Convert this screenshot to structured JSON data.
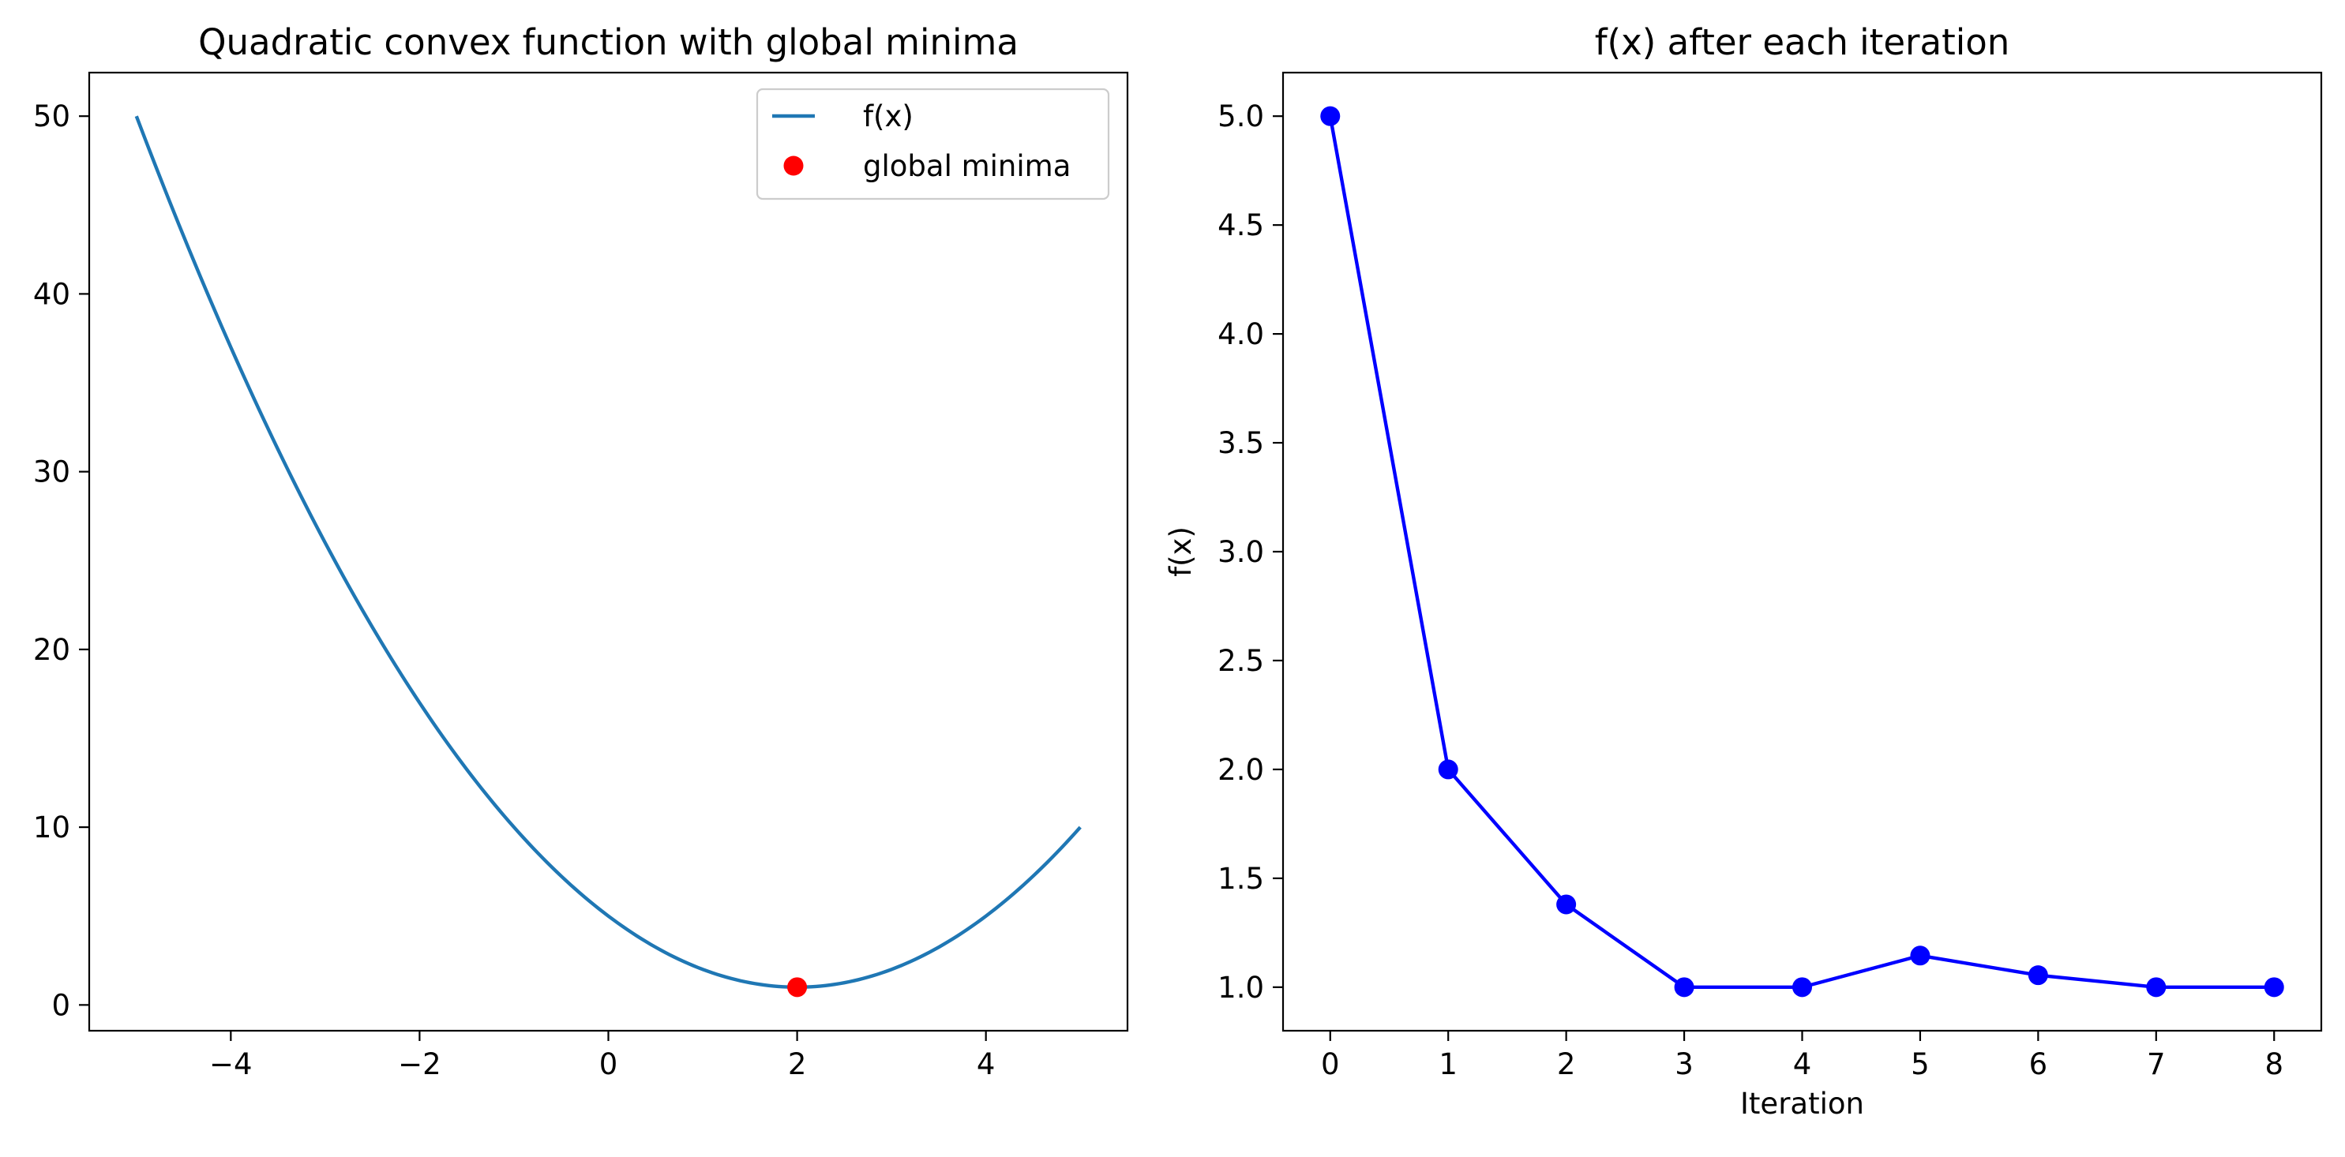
{
  "chart_data": [
    {
      "type": "line",
      "title": "Quadratic convex function with global minima",
      "xlabel": "",
      "ylabel": "",
      "xlim": [
        -5.5,
        5.5
      ],
      "ylim": [
        -1.45,
        52.45
      ],
      "xticks": [
        -4,
        -2,
        0,
        2,
        4
      ],
      "xtick_labels": [
        "−4",
        "−2",
        "0",
        "2",
        "4"
      ],
      "yticks": [
        0,
        10,
        20,
        30,
        40,
        50
      ],
      "ytick_labels": [
        "0",
        "10",
        "20",
        "30",
        "40",
        "50"
      ],
      "function": {
        "expression": "f(x) = (x - 2)^2 + 1",
        "x_range": [
          -5,
          5
        ]
      },
      "series": [
        {
          "name": "f(x)",
          "kind": "line",
          "color": "#1f77b4"
        },
        {
          "name": "global minima",
          "kind": "point",
          "color": "#ff0000",
          "x": [
            2
          ],
          "y": [
            1
          ]
        }
      ],
      "legend": {
        "position": "top-right",
        "entries": [
          "f(x)",
          "global minima"
        ]
      },
      "grid": false
    },
    {
      "type": "line",
      "title": "f(x) after each iteration",
      "xlabel": "Iteration",
      "ylabel": "f(x)",
      "xlim": [
        -0.4,
        8.4
      ],
      "ylim": [
        0.8,
        5.2
      ],
      "xticks": [
        0,
        1,
        2,
        3,
        4,
        5,
        6,
        7,
        8
      ],
      "xtick_labels": [
        "0",
        "1",
        "2",
        "3",
        "4",
        "5",
        "6",
        "7",
        "8"
      ],
      "yticks": [
        1.0,
        1.5,
        2.0,
        2.5,
        3.0,
        3.5,
        4.0,
        4.5,
        5.0
      ],
      "ytick_labels": [
        "1.0",
        "1.5",
        "2.0",
        "2.5",
        "3.0",
        "3.5",
        "4.0",
        "4.5",
        "5.0"
      ],
      "series": [
        {
          "kind": "line-markers",
          "color": "#0000ff",
          "x": [
            0,
            1,
            2,
            3,
            4,
            5,
            6,
            7,
            8
          ],
          "y": [
            5.0,
            2.0,
            1.38,
            1.0,
            1.0,
            1.145,
            1.055,
            1.0,
            1.0
          ]
        }
      ],
      "legend": null,
      "grid": false
    }
  ]
}
